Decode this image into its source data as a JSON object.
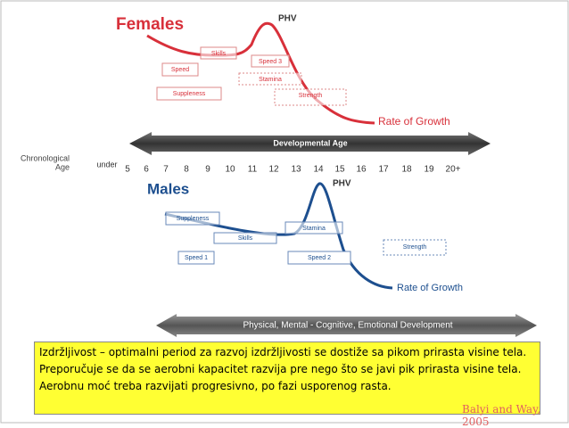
{
  "females": {
    "title": "Females",
    "phv": "PHV",
    "rate_of_growth": "Rate of Growth",
    "boxes": [
      "Skills",
      "Speed 3",
      "Speed",
      "Stamina",
      "Suppleness",
      "Strength"
    ]
  },
  "timeline": {
    "label": "Developmental Age",
    "axis_label": [
      "Chronological",
      "Age"
    ],
    "ages": [
      "under",
      "5",
      "6",
      "7",
      "8",
      "9",
      "10",
      "11",
      "12",
      "13",
      "14",
      "15",
      "16",
      "17",
      "18",
      "19",
      "20+"
    ]
  },
  "males": {
    "title": "Males",
    "phv": "PHV",
    "rate_of_growth": "Rate of Growth",
    "boxes": [
      "Suppleness",
      "Stamina",
      "Skills",
      "Strength",
      "Speed 1",
      "Speed 2"
    ]
  },
  "development": "Physical, Mental - Cognitive, Emotional Development",
  "note": "Izdržljivost – optimalni period za razvoj izdržljivosti se dostiže sa pikom prirasta visine tela. Preporučuje se da se aerobni kapacitet razvija pre nego što se javi pik prirasta visine tela. Aerobnu moć treba razvijati progresivno, po fazi usporenog rasta.",
  "credit": "Balyi and Way, 2005"
}
